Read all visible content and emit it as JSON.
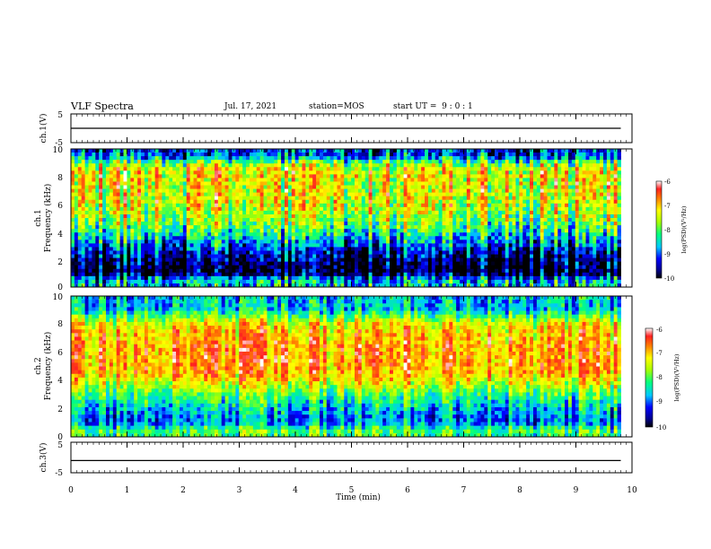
{
  "header": {
    "title": "VLF Spectra",
    "date": "Jul. 17, 2021",
    "station": "station=MOS",
    "start": "start UT =  9 : 0 : 1"
  },
  "chart_data": [
    {
      "type": "line",
      "panel": "ch1-waveform",
      "ylabel": "ch.1(V)",
      "yticks": [
        "5",
        "-5"
      ],
      "ylim": [
        -5,
        5
      ],
      "x": [
        0,
        1,
        2,
        3,
        4,
        5,
        6,
        7,
        8,
        9,
        9.8
      ],
      "series": [
        {
          "values": [
            0,
            0,
            0,
            0,
            0,
            0,
            0,
            0,
            0,
            0,
            0
          ]
        }
      ]
    },
    {
      "type": "heatmap",
      "panel": "ch1-spectrogram",
      "ylabel": "ch.1\nFrequency (kHz)",
      "ylim": [
        0,
        10
      ],
      "yticks": [
        "0",
        "2",
        "4",
        "6",
        "8",
        "10"
      ],
      "xlim": [
        0,
        9.8
      ],
      "colorbar": {
        "label": "log(PSD)(V²/Hz)",
        "ticks": [
          "-6",
          "-7",
          "-8",
          "-9",
          "-10"
        ],
        "range": [
          -10,
          -6
        ]
      },
      "profile_khz": [
        0.5,
        1,
        1.5,
        2,
        2.5,
        3,
        3.5,
        4,
        4.5,
        5,
        5.5,
        6,
        6.5,
        7,
        7.5,
        8,
        8.5,
        9,
        9.5
      ],
      "profile_logpsd": [
        -8.5,
        -9.8,
        -9.8,
        -9.6,
        -9.3,
        -8.9,
        -8.5,
        -8.1,
        -7.8,
        -7.6,
        -7.4,
        -7.3,
        -7.2,
        -7.2,
        -7.2,
        -7.1,
        -7.1,
        -7.8,
        -9.0
      ]
    },
    {
      "type": "heatmap",
      "panel": "ch2-spectrogram",
      "ylabel": "ch.2\nFrequency (kHz)",
      "ylim": [
        0,
        10
      ],
      "yticks": [
        "0",
        "2",
        "4",
        "6",
        "8",
        "10"
      ],
      "xlim": [
        0,
        9.8
      ],
      "colorbar": {
        "label": "log(PSD)(V²/Hz)",
        "ticks": [
          "-6",
          "-7",
          "-8",
          "-9",
          "-10"
        ],
        "range": [
          -10,
          -6
        ]
      },
      "profile_khz": [
        0.5,
        1,
        1.5,
        2,
        2.5,
        3,
        3.5,
        4,
        4.5,
        5,
        5.5,
        6,
        6.5,
        7,
        7.5,
        8,
        8.5,
        9,
        9.5
      ],
      "profile_logpsd": [
        -8.0,
        -8.9,
        -8.8,
        -8.6,
        -8.3,
        -8.0,
        -7.6,
        -7.2,
        -6.9,
        -6.8,
        -6.8,
        -6.8,
        -6.8,
        -6.9,
        -7.0,
        -7.2,
        -7.8,
        -8.5,
        -8.6
      ]
    },
    {
      "type": "line",
      "panel": "ch3-waveform",
      "ylabel": "ch.3(V)",
      "yticks": [
        "5",
        "-5"
      ],
      "ylim": [
        -5,
        5
      ],
      "x": [
        0,
        1,
        2,
        3,
        4,
        5,
        6,
        7,
        8,
        9,
        9.8
      ],
      "series": [
        {
          "values": [
            -1,
            -1,
            -1,
            -1,
            -1,
            -1,
            -1,
            -1,
            -1,
            -1,
            -1
          ]
        }
      ]
    }
  ],
  "xaxis": {
    "label": "Time (min)",
    "ticks": [
      "0",
      "1",
      "2",
      "3",
      "4",
      "5",
      "6",
      "7",
      "8",
      "9",
      "10"
    ],
    "range": [
      0,
      10
    ]
  }
}
